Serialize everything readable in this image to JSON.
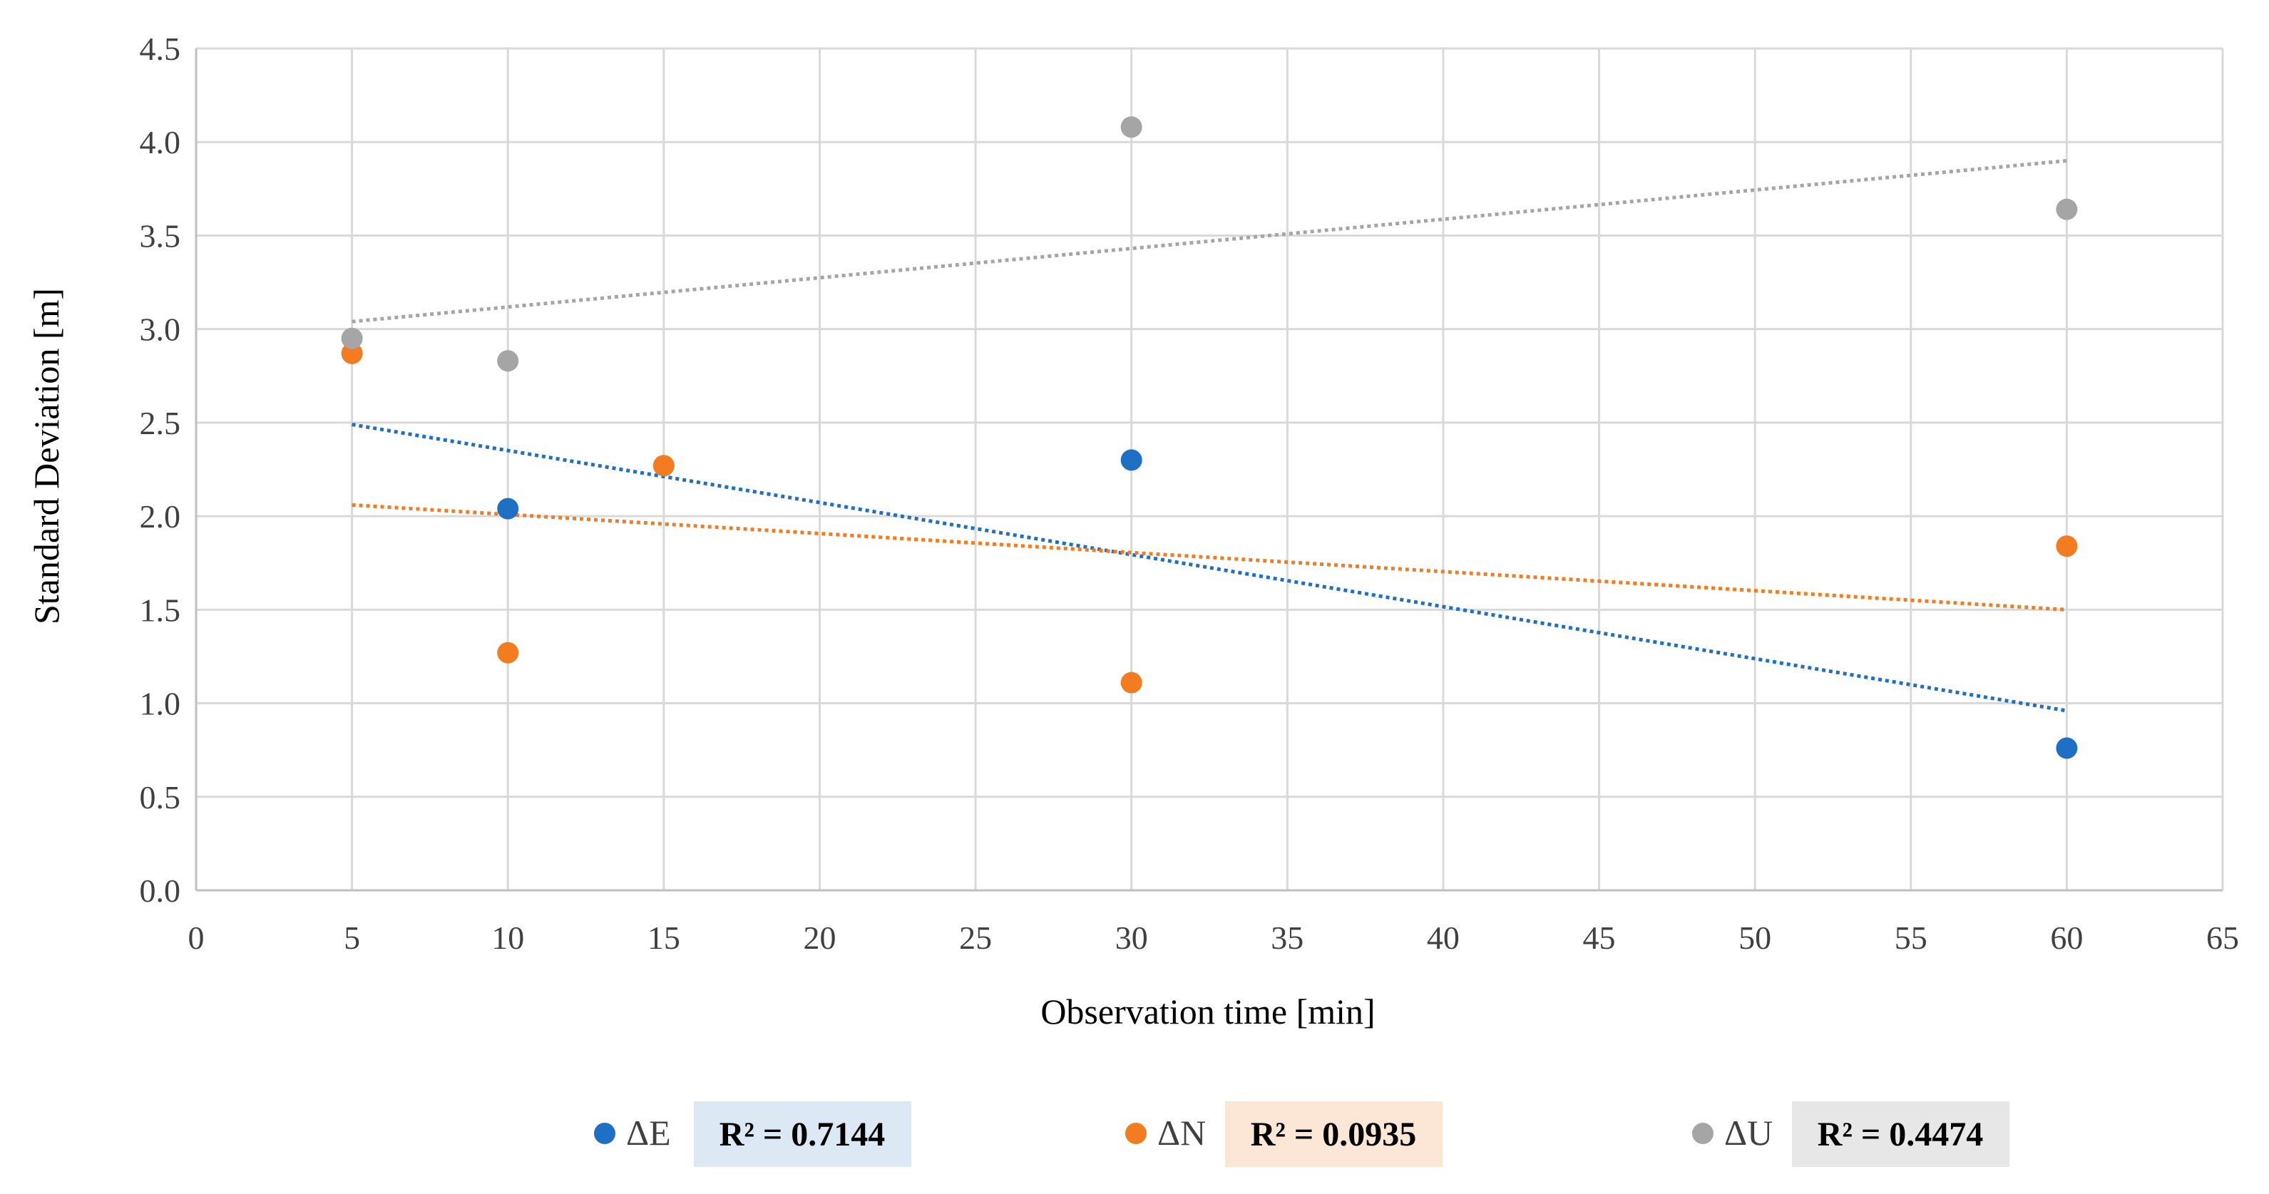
{
  "chart_data": {
    "type": "scatter",
    "title": "",
    "xlabel": "Observation time [min]",
    "ylabel": "Standard Deviation [m]",
    "xlim": [
      0,
      65
    ],
    "ylim": [
      0,
      4.5
    ],
    "xticks": [
      0,
      5,
      10,
      15,
      20,
      25,
      30,
      35,
      40,
      45,
      50,
      55,
      60,
      65
    ],
    "yticks": [
      0.0,
      0.5,
      1.0,
      1.5,
      2.0,
      2.5,
      3.0,
      3.5,
      4.0,
      4.5
    ],
    "xtick_labels": [
      "0",
      "5",
      "10",
      "15",
      "20",
      "25",
      "30",
      "35",
      "40",
      "45",
      "50",
      "55",
      "60",
      "65"
    ],
    "ytick_labels": [
      "0.0",
      "0.5",
      "1.0",
      "1.5",
      "2.0",
      "2.5",
      "3.0",
      "3.5",
      "4.0",
      "4.5"
    ],
    "grid": true,
    "legend_position": "bottom",
    "series": [
      {
        "name": "ΔE",
        "color": "#1f6fc5",
        "x": [
          10,
          30,
          60
        ],
        "y": [
          2.04,
          2.3,
          0.76
        ],
        "trendline": {
          "type": "linear",
          "x": [
            5,
            60
          ],
          "y": [
            2.49,
            0.96
          ]
        },
        "r2_label": "R² = 0.7144",
        "r2_bg": "#dde8f5"
      },
      {
        "name": "ΔN",
        "color": "#f47c20",
        "x": [
          5,
          10,
          15,
          30,
          60
        ],
        "y": [
          2.87,
          1.27,
          2.27,
          1.11,
          1.84
        ],
        "trendline": {
          "type": "linear",
          "x": [
            5,
            60
          ],
          "y": [
            2.06,
            1.5
          ]
        },
        "r2_label": "R² = 0.0935",
        "r2_bg": "#fce6d6"
      },
      {
        "name": "ΔU",
        "color": "#a5a5a5",
        "x": [
          5,
          10,
          30,
          60
        ],
        "y": [
          2.95,
          2.83,
          4.08,
          3.64
        ],
        "trendline": {
          "type": "linear",
          "x": [
            5,
            60
          ],
          "y": [
            3.04,
            3.9
          ]
        },
        "r2_label": "R² = 0.4474",
        "r2_bg": "#e7e7e7"
      }
    ]
  }
}
